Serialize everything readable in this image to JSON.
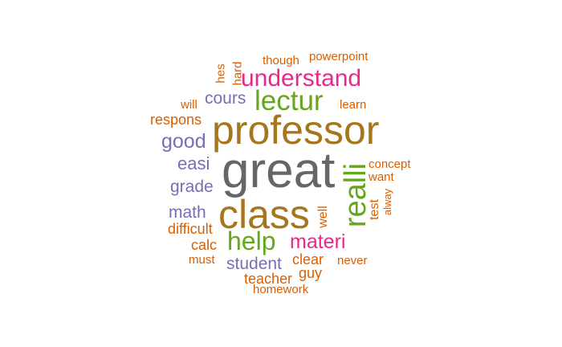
{
  "colors": {
    "gray": "#666666",
    "brown": "#a6761d",
    "green": "#66a61e",
    "magenta": "#e7298a",
    "purple": "#7570b3",
    "orange": "#d95f02"
  },
  "words": {
    "great": "great",
    "professor": "professor",
    "class": "class",
    "realli": "realli",
    "understand": "understand",
    "lectur": "lectur",
    "help": "help",
    "materi": "materi",
    "good": "good",
    "cours": "cours",
    "easi": "easi",
    "grade": "grade",
    "math": "math",
    "student": "student",
    "powerpoint": "powerpoint",
    "though": "though",
    "hes": "hes",
    "hard": "hard",
    "will": "will",
    "learn": "learn",
    "respons": "respons",
    "concept": "concept",
    "want": "want",
    "test": "test",
    "alway": "alway",
    "well": "well",
    "difficult": "difficult",
    "calc": "calc",
    "must": "must",
    "clear": "clear",
    "never": "never",
    "guy": "guy",
    "teacher": "teacher",
    "homework": "homework"
  }
}
